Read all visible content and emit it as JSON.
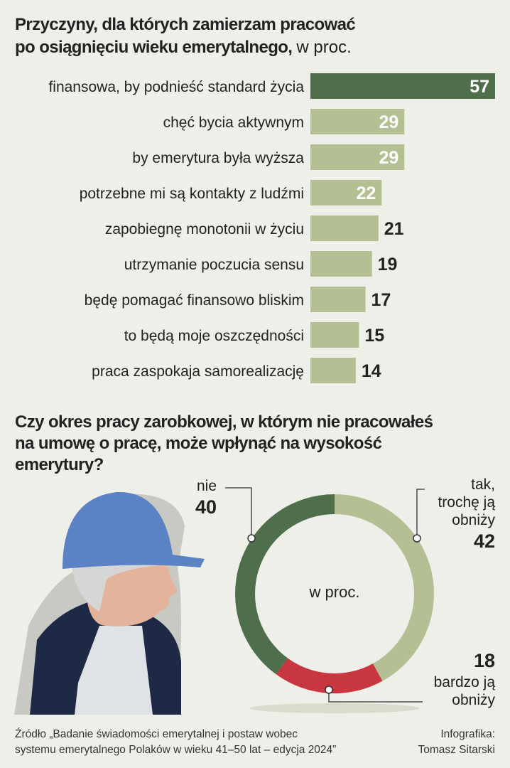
{
  "chart_data": [
    {
      "type": "bar",
      "title": [
        "Przyczyny, dla których zamierzam pracować",
        "po osiągnięciu wieku emerytalnego,"
      ],
      "subtitle": "w proc.",
      "categories": [
        "finansowa, by podnieść standard życia",
        "chęć bycia aktywnym",
        "by emerytura była wyższa",
        "potrzebne mi są kontakty z ludźmi",
        "zapobiegnę monotonii w życiu",
        "utrzymanie poczucia sensu",
        "będę pomagać finansowo bliskim",
        "to będą moje oszczędności",
        "praca zaspokaja samorealizację"
      ],
      "values": [
        57,
        29,
        29,
        22,
        21,
        19,
        17,
        15,
        14
      ],
      "colors": [
        "#4f6e4c",
        "#b4c093",
        "#b4c093",
        "#b4c093",
        "#b4c093",
        "#b4c093",
        "#b4c093",
        "#b4c093",
        "#b4c093"
      ]
    },
    {
      "type": "donut",
      "title": [
        "Czy okres pracy zarobkowej, w którym nie pracowałeś",
        "na umowę o pracę, może wpłynąć na wysokość",
        "emerytury?"
      ],
      "center_label": "w proc.",
      "categories": [
        [
          "tak,",
          "trochę ją",
          "obniży"
        ],
        [
          "bardzo ją",
          "obniży"
        ],
        [
          "nie"
        ]
      ],
      "values": [
        42,
        18,
        40
      ],
      "colors": [
        "#b4c093",
        "#c8363f",
        "#4f6e4c"
      ]
    }
  ],
  "source": [
    "Źródło „Badanie świadomości emerytalnej i postaw wobec",
    "systemu emerytalnego Polaków w wieku 41–50 lat – edycja 2024”"
  ],
  "credit": [
    "Infografika:",
    "Tomasz Sitarski"
  ]
}
